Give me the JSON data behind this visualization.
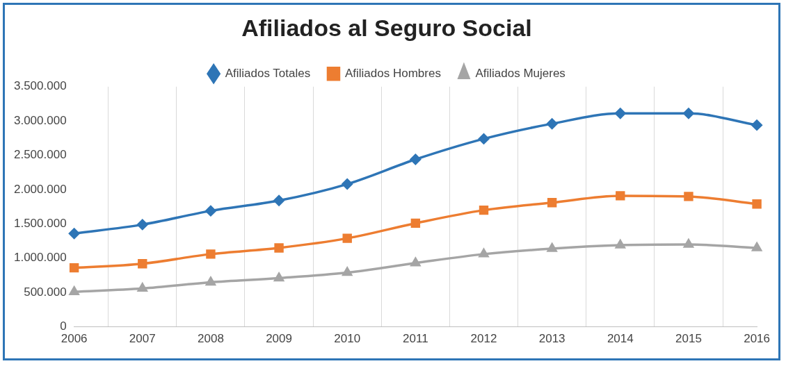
{
  "chart_data": {
    "type": "line",
    "title": "Afiliados al Seguro Social",
    "categories": [
      "2006",
      "2007",
      "2008",
      "2009",
      "2010",
      "2011",
      "2012",
      "2013",
      "2014",
      "2015",
      "2016"
    ],
    "series": [
      {
        "name": "Afiliados Totales",
        "color": "#2e75b6",
        "marker": "diamond",
        "values": [
          1360000,
          1490000,
          1690000,
          1840000,
          2080000,
          2440000,
          2740000,
          2960000,
          3110000,
          3110000,
          2940000
        ]
      },
      {
        "name": "Afiliados Hombres",
        "color": "#ed7d31",
        "marker": "square",
        "values": [
          860000,
          920000,
          1060000,
          1150000,
          1290000,
          1510000,
          1700000,
          1810000,
          1910000,
          1900000,
          1790000
        ]
      },
      {
        "name": "Afiliados Mujeres",
        "color": "#a5a5a5",
        "marker": "triangle",
        "values": [
          510000,
          560000,
          650000,
          710000,
          790000,
          930000,
          1060000,
          1140000,
          1190000,
          1200000,
          1150000
        ]
      }
    ],
    "ylim": [
      0,
      3500000
    ],
    "yticks": [
      0,
      {
        "value": 500000,
        "label": "500.000"
      },
      {
        "value": 1000000,
        "label": "1.000.000"
      },
      {
        "value": 1500000,
        "label": "1.500.000"
      },
      {
        "value": 2000000,
        "label": "2.000.000"
      },
      {
        "value": 2500000,
        "label": "2.500.000"
      },
      {
        "value": 3000000,
        "label": "3.000.000"
      },
      {
        "value": 3500000,
        "label": "3.500.000"
      }
    ],
    "grid": "x",
    "legend": "top"
  }
}
